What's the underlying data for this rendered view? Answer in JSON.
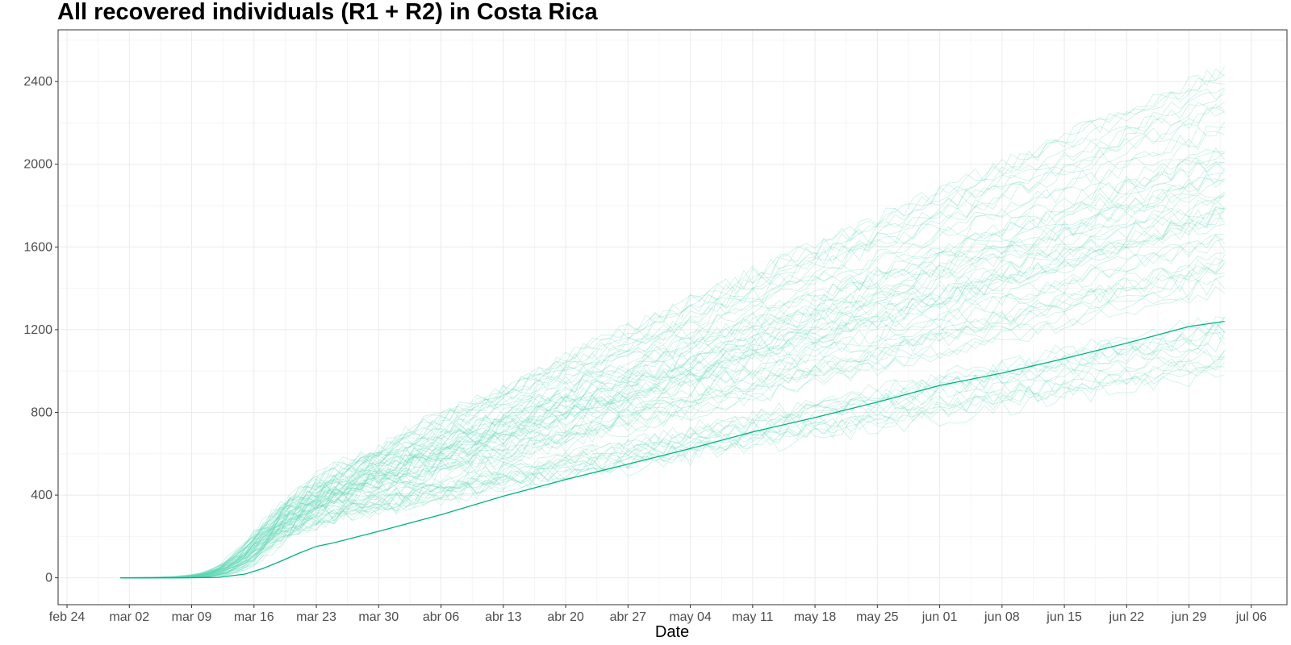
{
  "chart_data": {
    "type": "line",
    "title": "All recovered individuals (R1 + R2) in  Costa Rica",
    "xlabel": "Date",
    "ylabel": "",
    "x_ticks": [
      {
        "date": "2020-02-24",
        "label": "feb 24"
      },
      {
        "date": "2020-03-02",
        "label": "mar 02"
      },
      {
        "date": "2020-03-09",
        "label": "mar 09"
      },
      {
        "date": "2020-03-16",
        "label": "mar 16"
      },
      {
        "date": "2020-03-23",
        "label": "mar 23"
      },
      {
        "date": "2020-03-30",
        "label": "mar 30"
      },
      {
        "date": "2020-04-06",
        "label": "abr 06"
      },
      {
        "date": "2020-04-13",
        "label": "abr 13"
      },
      {
        "date": "2020-04-20",
        "label": "abr 20"
      },
      {
        "date": "2020-04-27",
        "label": "abr 27"
      },
      {
        "date": "2020-05-04",
        "label": "may 04"
      },
      {
        "date": "2020-05-11",
        "label": "may 11"
      },
      {
        "date": "2020-05-18",
        "label": "may 18"
      },
      {
        "date": "2020-05-25",
        "label": "may 25"
      },
      {
        "date": "2020-06-01",
        "label": "jun 01"
      },
      {
        "date": "2020-06-08",
        "label": "jun 08"
      },
      {
        "date": "2020-06-15",
        "label": "jun 15"
      },
      {
        "date": "2020-06-22",
        "label": "jun 22"
      },
      {
        "date": "2020-06-29",
        "label": "jun 29"
      },
      {
        "date": "2020-07-06",
        "label": "jul 06"
      }
    ],
    "y_ticks": [
      0,
      400,
      800,
      1200,
      1600,
      2000,
      2400
    ],
    "xlim": [
      "2020-02-23",
      "2020-07-10"
    ],
    "ylim": [
      -130,
      2650
    ],
    "grid": true,
    "legend": "none",
    "colors": {
      "main": "#00b386",
      "simulations": "#5fd6b3"
    },
    "series": [
      {
        "x": [
          "2020-03-01",
          "2020-03-08",
          "2020-03-12",
          "2020-03-15",
          "2020-03-17",
          "2020-03-19",
          "2020-03-21",
          "2020-03-23",
          "2020-03-25",
          "2020-03-30",
          "2020-04-06",
          "2020-04-13",
          "2020-04-20",
          "2020-04-27",
          "2020-05-04",
          "2020-05-11",
          "2020-05-18",
          "2020-05-25",
          "2020-06-01",
          "2020-06-08",
          "2020-06-15",
          "2020-06-22",
          "2020-06-29",
          "2020-07-03"
        ],
        "y": [
          0,
          0,
          2,
          18,
          45,
          80,
          118,
          152,
          170,
          225,
          305,
          395,
          475,
          550,
          625,
          705,
          775,
          850,
          930,
          990,
          1060,
          1135,
          1215,
          1240
        ]
      }
    ],
    "simulations": {
      "count": 70,
      "end_date": "2020-07-03",
      "end_value_range": [
        950,
        2510
      ]
    }
  }
}
